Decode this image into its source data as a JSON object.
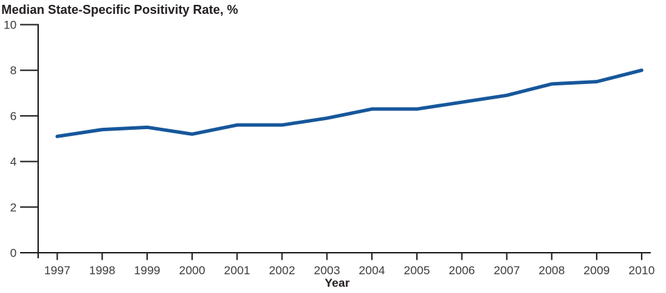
{
  "page": {
    "background_color": "#FFFFFF"
  },
  "chart_data": {
    "type": "line",
    "title": "Median State-Specific Positivity Rate, %",
    "xlabel": "Year",
    "ylabel": "",
    "x": [
      1997,
      1998,
      1999,
      2000,
      2001,
      2002,
      2003,
      2004,
      2005,
      2006,
      2007,
      2008,
      2009,
      2010
    ],
    "series": [
      {
        "name": "median-state-specific-positivity-rate",
        "values": [
          5.1,
          5.4,
          5.5,
          5.2,
          5.6,
          5.6,
          5.9,
          6.3,
          6.3,
          6.6,
          6.9,
          7.4,
          7.5,
          8.0
        ],
        "color": "#16579B"
      }
    ],
    "ylim": [
      0,
      10
    ],
    "yticks": [
      0,
      2,
      4,
      6,
      8,
      10
    ],
    "grid": false,
    "legend": "none",
    "axis_color": "#231F20"
  }
}
